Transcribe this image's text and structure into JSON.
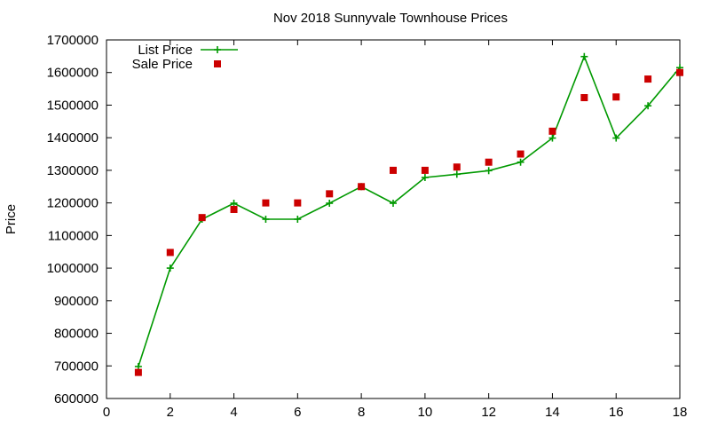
{
  "chart_data": {
    "type": "line",
    "title": "Nov 2018 Sunnyvale Townhouse Prices",
    "xlabel": "",
    "ylabel": "Price",
    "xlim": [
      0,
      18
    ],
    "ylim": [
      600000,
      1700000
    ],
    "x_ticks": [
      0,
      2,
      4,
      6,
      8,
      10,
      12,
      14,
      16,
      18
    ],
    "y_ticks": [
      600000,
      700000,
      800000,
      900000,
      1000000,
      1100000,
      1200000,
      1300000,
      1400000,
      1500000,
      1600000,
      1700000
    ],
    "grid": false,
    "legend_position": "top-left",
    "series": [
      {
        "name": "List Price",
        "style": "line-with-plus-markers",
        "color": "#009900",
        "x": [
          1,
          2,
          3,
          4,
          5,
          6,
          7,
          8,
          9,
          10,
          11,
          12,
          13,
          14,
          15,
          16,
          17,
          18
        ],
        "values": [
          698000,
          1000000,
          1150000,
          1199000,
          1150000,
          1150000,
          1199000,
          1250000,
          1199000,
          1278000,
          1288000,
          1299000,
          1325000,
          1399000,
          1649000,
          1399000,
          1498000,
          1615000
        ]
      },
      {
        "name": "Sale Price",
        "style": "square-markers",
        "color": "#cc0000",
        "x": [
          1,
          2,
          3,
          4,
          5,
          6,
          7,
          8,
          9,
          10,
          11,
          12,
          13,
          14,
          15,
          16,
          17,
          18
        ],
        "values": [
          680000,
          1048000,
          1155000,
          1180000,
          1200000,
          1200000,
          1228000,
          1250000,
          1300000,
          1300000,
          1310000,
          1325000,
          1350000,
          1420000,
          1523000,
          1525000,
          1580000,
          1600000
        ]
      }
    ]
  }
}
